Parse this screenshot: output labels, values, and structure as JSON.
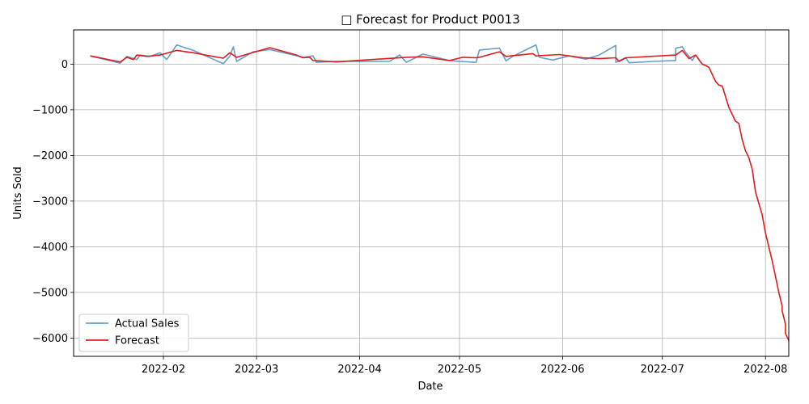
{
  "chart_data": {
    "type": "line",
    "title": "□ Forecast for Product P0013",
    "xlabel": "Date",
    "ylabel": "Units Sold",
    "xlim": [
      "2022-01-05",
      "2022-08-08"
    ],
    "ylim": [
      -6400,
      750
    ],
    "x_ticks": [
      "2022-02-01",
      "2022-03-01",
      "2022-04-01",
      "2022-05-01",
      "2022-06-01",
      "2022-07-01",
      "2022-08-01"
    ],
    "x_tick_labels": [
      "2022-02",
      "2022-03",
      "2022-04",
      "2022-05",
      "2022-06",
      "2022-07",
      "2022-08"
    ],
    "y_ticks": [
      0,
      -1000,
      -2000,
      -3000,
      -4000,
      -5000,
      -6000
    ],
    "y_tick_labels": [
      "0",
      "−1000",
      "−2000",
      "−3000",
      "−4000",
      "−5000",
      "−6000"
    ],
    "grid": true,
    "legend_position": "lower-left",
    "series": [
      {
        "name": "Actual Sales",
        "color": "#1f77b4",
        "points": [
          [
            "2022-01-10",
            180
          ],
          [
            "2022-01-19",
            20
          ],
          [
            "2022-01-21",
            170
          ],
          [
            "2022-01-24",
            100
          ],
          [
            "2022-01-25",
            200
          ],
          [
            "2022-01-28",
            170
          ],
          [
            "2022-01-31",
            250
          ],
          [
            "2022-02-02",
            100
          ],
          [
            "2022-02-05",
            420
          ],
          [
            "2022-02-10",
            300
          ],
          [
            "2022-02-19",
            10
          ],
          [
            "2022-02-21",
            180
          ],
          [
            "2022-02-22",
            380
          ],
          [
            "2022-02-23",
            60
          ],
          [
            "2022-02-28",
            270
          ],
          [
            "2022-03-05",
            320
          ],
          [
            "2022-03-15",
            150
          ],
          [
            "2022-03-18",
            180
          ],
          [
            "2022-03-19",
            40
          ],
          [
            "2022-03-25",
            60
          ],
          [
            "2022-04-10",
            60
          ],
          [
            "2022-04-10",
            60
          ],
          [
            "2022-04-13",
            200
          ],
          [
            "2022-04-15",
            40
          ],
          [
            "2022-04-20",
            220
          ],
          [
            "2022-04-28",
            80
          ],
          [
            "2022-05-01",
            60
          ],
          [
            "2022-05-06",
            40
          ],
          [
            "2022-05-07",
            310
          ],
          [
            "2022-05-13",
            350
          ],
          [
            "2022-05-15",
            70
          ],
          [
            "2022-05-17",
            170
          ],
          [
            "2022-05-24",
            420
          ],
          [
            "2022-05-25",
            150
          ],
          [
            "2022-05-29",
            90
          ],
          [
            "2022-06-03",
            180
          ],
          [
            "2022-06-08",
            110
          ],
          [
            "2022-06-12",
            200
          ],
          [
            "2022-06-17",
            410
          ],
          [
            "2022-06-17",
            40
          ],
          [
            "2022-06-20",
            140
          ],
          [
            "2022-06-21",
            30
          ],
          [
            "2022-06-28",
            60
          ],
          [
            "2022-07-05",
            80
          ],
          [
            "2022-07-05",
            350
          ],
          [
            "2022-07-07",
            380
          ],
          [
            "2022-07-08",
            260
          ],
          [
            "2022-07-10",
            80
          ],
          [
            "2022-07-11",
            200
          ]
        ]
      },
      {
        "name": "Forecast",
        "color": "#e31a1c",
        "points": [
          [
            "2022-01-10",
            180
          ],
          [
            "2022-01-19",
            50
          ],
          [
            "2022-01-21",
            150
          ],
          [
            "2022-01-23",
            100
          ],
          [
            "2022-01-24",
            200
          ],
          [
            "2022-01-27",
            170
          ],
          [
            "2022-01-31",
            200
          ],
          [
            "2022-02-05",
            300
          ],
          [
            "2022-02-10",
            250
          ],
          [
            "2022-02-15",
            180
          ],
          [
            "2022-02-19",
            130
          ],
          [
            "2022-02-21",
            250
          ],
          [
            "2022-02-23",
            150
          ],
          [
            "2022-03-05",
            360
          ],
          [
            "2022-03-13",
            200
          ],
          [
            "2022-03-15",
            140
          ],
          [
            "2022-03-17",
            150
          ],
          [
            "2022-03-18",
            80
          ],
          [
            "2022-03-25",
            50
          ],
          [
            "2022-04-15",
            150
          ],
          [
            "2022-04-20",
            160
          ],
          [
            "2022-04-28",
            80
          ],
          [
            "2022-05-02",
            150
          ],
          [
            "2022-05-06",
            140
          ],
          [
            "2022-05-07",
            150
          ],
          [
            "2022-05-13",
            270
          ],
          [
            "2022-05-15",
            170
          ],
          [
            "2022-05-23",
            230
          ],
          [
            "2022-05-24",
            180
          ],
          [
            "2022-05-31",
            210
          ],
          [
            "2022-06-03",
            180
          ],
          [
            "2022-06-07",
            140
          ],
          [
            "2022-06-12",
            120
          ],
          [
            "2022-06-17",
            140
          ],
          [
            "2022-06-18",
            60
          ],
          [
            "2022-06-20",
            140
          ],
          [
            "2022-07-05",
            200
          ],
          [
            "2022-07-07",
            300
          ],
          [
            "2022-07-09",
            120
          ],
          [
            "2022-07-11",
            200
          ],
          [
            "2022-07-13",
            0
          ],
          [
            "2022-07-14",
            -30
          ],
          [
            "2022-07-15",
            -70
          ],
          [
            "2022-07-17",
            -380
          ],
          [
            "2022-07-18",
            -460
          ],
          [
            "2022-07-19",
            -480
          ],
          [
            "2022-07-21",
            -950
          ],
          [
            "2022-07-23",
            -1250
          ],
          [
            "2022-07-24",
            -1300
          ],
          [
            "2022-07-25",
            -1650
          ],
          [
            "2022-07-26",
            -1900
          ],
          [
            "2022-07-27",
            -2050
          ],
          [
            "2022-07-28",
            -2300
          ],
          [
            "2022-07-29",
            -2800
          ],
          [
            "2022-07-31",
            -3300
          ],
          [
            "2022-08-01",
            -3700
          ],
          [
            "2022-08-02",
            -4000
          ],
          [
            "2022-08-03",
            -4300
          ],
          [
            "2022-08-04",
            -4650
          ],
          [
            "2022-08-05",
            -5000
          ],
          [
            "2022-08-06",
            -5300
          ],
          [
            "2022-08-06",
            -5400
          ],
          [
            "2022-08-07",
            -5700
          ],
          [
            "2022-08-07",
            -5900
          ],
          [
            "2022-08-08",
            -6050
          ]
        ]
      }
    ]
  }
}
